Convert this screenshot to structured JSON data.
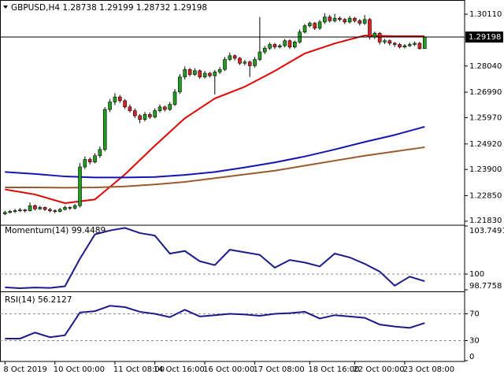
{
  "chart_data": [
    {
      "type": "candlestick",
      "title": "GBPUSD,H4  1.28738 1.29199 1.28732 1.29198",
      "xlim": [
        -1,
        92
      ],
      "ylim": [
        1.217,
        1.3068
      ],
      "yticks": [
        {
          "value": 1.3011,
          "label": "1.30110"
        },
        {
          "value": 1.2804,
          "label": "1.28040"
        },
        {
          "value": 1.2699,
          "label": "1.26990"
        },
        {
          "value": 1.2597,
          "label": "1.25970"
        },
        {
          "value": 1.2492,
          "label": "1.24920"
        },
        {
          "value": 1.239,
          "label": "1.23900"
        },
        {
          "value": 1.2285,
          "label": "1.22850"
        },
        {
          "value": 1.2183,
          "label": "1.21830"
        }
      ],
      "bid_line": 1.29198,
      "up_color": "#1f9e1f",
      "down_color": "#e02020",
      "wick_color": "#000000",
      "ohlc": [
        [
          1.2212,
          1.2225,
          1.2208,
          1.2218
        ],
        [
          1.2218,
          1.2228,
          1.2214,
          1.2222
        ],
        [
          1.2222,
          1.2232,
          1.2216,
          1.2225
        ],
        [
          1.2225,
          1.2236,
          1.222,
          1.2228
        ],
        [
          1.2228,
          1.2232,
          1.2218,
          1.2225
        ],
        [
          1.2225,
          1.2258,
          1.2222,
          1.2245
        ],
        [
          1.2245,
          1.225,
          1.2226,
          1.2232
        ],
        [
          1.2232,
          1.2244,
          1.2228,
          1.2238
        ],
        [
          1.2238,
          1.2242,
          1.2224,
          1.223
        ],
        [
          1.223,
          1.2236,
          1.2218,
          1.2225
        ],
        [
          1.2225,
          1.223,
          1.2215,
          1.2222
        ],
        [
          1.2222,
          1.2236,
          1.2218,
          1.223
        ],
        [
          1.223,
          1.2244,
          1.2226,
          1.2238
        ],
        [
          1.2238,
          1.2242,
          1.2228,
          1.2235
        ],
        [
          1.2235,
          1.2252,
          1.223,
          1.2245
        ],
        [
          1.2245,
          1.2415,
          1.2238,
          1.24
        ],
        [
          1.24,
          1.2442,
          1.2392,
          1.243
        ],
        [
          1.243,
          1.2438,
          1.241,
          1.242
        ],
        [
          1.242,
          1.2455,
          1.2414,
          1.2445
        ],
        [
          1.2445,
          1.2482,
          1.2436,
          1.247
        ],
        [
          1.247,
          1.264,
          1.2462,
          1.263
        ],
        [
          1.263,
          1.2672,
          1.262,
          1.266
        ],
        [
          1.266,
          1.2695,
          1.2648,
          1.268
        ],
        [
          1.268,
          1.2688,
          1.2656,
          1.2665
        ],
        [
          1.2665,
          1.2672,
          1.2632,
          1.264
        ],
        [
          1.264,
          1.265,
          1.2618,
          1.2625
        ],
        [
          1.2625,
          1.2634,
          1.2596,
          1.2605
        ],
        [
          1.2605,
          1.2612,
          1.2575,
          1.259
        ],
        [
          1.259,
          1.262,
          1.2582,
          1.261
        ],
        [
          1.261,
          1.2618,
          1.2592,
          1.26
        ],
        [
          1.26,
          1.2634,
          1.2594,
          1.2625
        ],
        [
          1.2625,
          1.265,
          1.2618,
          1.264
        ],
        [
          1.264,
          1.2646,
          1.2622,
          1.263
        ],
        [
          1.263,
          1.266,
          1.2624,
          1.265
        ],
        [
          1.265,
          1.2712,
          1.2644,
          1.27
        ],
        [
          1.27,
          1.2772,
          1.2692,
          1.276
        ],
        [
          1.276,
          1.2802,
          1.275,
          1.279
        ],
        [
          1.279,
          1.2796,
          1.2762,
          1.277
        ],
        [
          1.277,
          1.2795,
          1.2764,
          1.2785
        ],
        [
          1.2785,
          1.279,
          1.2752,
          1.276
        ],
        [
          1.276,
          1.2784,
          1.2754,
          1.2775
        ],
        [
          1.2775,
          1.278,
          1.2758,
          1.2765
        ],
        [
          1.2765,
          1.2788,
          1.269,
          1.278
        ],
        [
          1.278,
          1.28,
          1.2772,
          1.279
        ],
        [
          1.279,
          1.284,
          1.2784,
          1.283
        ],
        [
          1.283,
          1.2858,
          1.2824,
          1.2845
        ],
        [
          1.2845,
          1.285,
          1.2826,
          1.2835
        ],
        [
          1.2835,
          1.284,
          1.2808,
          1.2815
        ],
        [
          1.2815,
          1.2828,
          1.2806,
          1.282
        ],
        [
          1.282,
          1.2826,
          1.276,
          1.2805
        ],
        [
          1.2805,
          1.284,
          1.2798,
          1.283
        ],
        [
          1.283,
          1.3,
          1.2824,
          1.286
        ],
        [
          1.286,
          1.2884,
          1.2852,
          1.2875
        ],
        [
          1.2875,
          1.2898,
          1.2868,
          1.289
        ],
        [
          1.289,
          1.2896,
          1.2872,
          1.288
        ],
        [
          1.288,
          1.2892,
          1.2874,
          1.2885
        ],
        [
          1.2885,
          1.2912,
          1.2878,
          1.2905
        ],
        [
          1.2905,
          1.291,
          1.2872,
          1.288
        ],
        [
          1.288,
          1.2906,
          1.2874,
          1.29
        ],
        [
          1.29,
          1.295,
          1.2894,
          1.294
        ],
        [
          1.294,
          1.2972,
          1.2934,
          1.2965
        ],
        [
          1.2965,
          1.2982,
          1.2958,
          1.2975
        ],
        [
          1.2975,
          1.298,
          1.2948,
          1.2955
        ],
        [
          1.2955,
          1.2988,
          1.2948,
          1.298
        ],
        [
          1.298,
          1.3015,
          1.2972,
          1.3
        ],
        [
          1.3,
          1.3008,
          1.2978,
          1.2985
        ],
        [
          1.2985,
          1.3012,
          1.2978,
          1.2995
        ],
        [
          1.2995,
          1.3002,
          1.2982,
          1.299
        ],
        [
          1.299,
          1.2996,
          1.2972,
          1.298
        ],
        [
          1.298,
          1.3004,
          1.2974,
          1.2995
        ],
        [
          1.2995,
          1.3,
          1.2978,
          1.2985
        ],
        [
          1.2985,
          1.2992,
          1.2966,
          1.2975
        ],
        [
          1.2975,
          1.3008,
          1.2968,
          1.299
        ],
        [
          1.299,
          1.2996,
          1.291,
          1.292
        ],
        [
          1.292,
          1.2942,
          1.2912,
          1.2935
        ],
        [
          1.2935,
          1.294,
          1.289,
          1.29
        ],
        [
          1.29,
          1.2912,
          1.2892,
          1.2905
        ],
        [
          1.2905,
          1.291,
          1.2886,
          1.2895
        ],
        [
          1.2895,
          1.29,
          1.288,
          1.289
        ],
        [
          1.289,
          1.2896,
          1.2874,
          1.288
        ],
        [
          1.288,
          1.2892,
          1.2874,
          1.2885
        ],
        [
          1.2885,
          1.2898,
          1.288,
          1.289
        ],
        [
          1.289,
          1.2902,
          1.2884,
          1.2895
        ],
        [
          1.2895,
          1.29,
          1.287,
          1.28738
        ],
        [
          1.28738,
          1.29199,
          1.28732,
          1.29198
        ]
      ],
      "lines": [
        {
          "color": "#e00000",
          "x": [
            0,
            6,
            12,
            18,
            24,
            30,
            36,
            42,
            48,
            54,
            60,
            66,
            72,
            78,
            84
          ],
          "values": [
            1.231,
            1.229,
            1.2255,
            1.227,
            1.237,
            1.2485,
            1.2595,
            1.2674,
            1.2721,
            1.2784,
            1.2854,
            1.2894,
            1.2926,
            1.2923,
            1.2923
          ]
        },
        {
          "color": "#1414b4",
          "x": [
            0,
            6,
            12,
            18,
            24,
            30,
            36,
            42,
            48,
            54,
            60,
            66,
            72,
            78,
            84
          ],
          "values": [
            1.238,
            1.2372,
            1.2362,
            1.2358,
            1.2358,
            1.236,
            1.2368,
            1.238,
            1.2398,
            1.2418,
            1.2442,
            1.247,
            1.25,
            1.2528,
            1.2561
          ]
        },
        {
          "color": "#9a5a2e",
          "x": [
            0,
            6,
            12,
            18,
            24,
            30,
            36,
            42,
            48,
            54,
            60,
            66,
            72,
            78,
            84
          ],
          "values": [
            1.2318,
            1.2318,
            1.2317,
            1.2318,
            1.2322,
            1.233,
            1.234,
            1.2355,
            1.237,
            1.2385,
            1.2405,
            1.2425,
            1.2445,
            1.2462,
            1.2479
          ]
        }
      ]
    },
    {
      "type": "line",
      "title": "Momentum(14) 99.4489",
      "xlim": [
        -1,
        92
      ],
      "ylim": [
        98.7758,
        103.7491
      ],
      "yticks": [
        103.7491,
        100,
        98.7758
      ],
      "levels": [
        100
      ],
      "color": "#1a1a8c",
      "x": [
        0,
        3,
        6,
        9,
        12,
        15,
        18,
        21,
        24,
        27,
        30,
        33,
        36,
        39,
        42,
        45,
        48,
        51,
        54,
        57,
        60,
        63,
        66,
        69,
        72,
        75,
        78,
        81,
        84
      ],
      "values": [
        98.97,
        98.9,
        98.95,
        98.92,
        99.05,
        101.2,
        103.1,
        103.4,
        103.6,
        103.2,
        103.0,
        101.6,
        101.8,
        101.0,
        100.7,
        101.9,
        101.7,
        101.5,
        100.5,
        101.1,
        100.9,
        100.6,
        101.6,
        101.3,
        100.8,
        100.2,
        99.1,
        99.8,
        99.4489
      ]
    },
    {
      "type": "line",
      "title": "RSI(14) 56.2127",
      "xlim": [
        -1,
        92
      ],
      "ylim": [
        0,
        100
      ],
      "yticks": [
        70,
        30,
        0
      ],
      "levels": [
        70,
        30
      ],
      "color": "#1a1a8c",
      "x": [
        0,
        3,
        6,
        9,
        12,
        15,
        18,
        21,
        24,
        27,
        30,
        33,
        36,
        39,
        42,
        45,
        48,
        51,
        54,
        57,
        60,
        63,
        66,
        69,
        72,
        75,
        78,
        81,
        84
      ],
      "values": [
        33,
        33,
        42,
        35,
        38,
        72,
        74,
        82,
        80,
        73,
        70,
        65,
        76,
        66,
        68,
        70,
        69,
        67,
        70,
        71,
        73,
        63,
        68,
        66,
        64,
        54,
        51,
        49,
        56.2127
      ],
      "xticks": [
        {
          "value": 0,
          "label": "8 Oct 2019"
        },
        {
          "value": 10,
          "label": "10 Oct 00:00"
        },
        {
          "value": 22,
          "label": "11 Oct 08:00"
        },
        {
          "value": 30,
          "label": "14 Oct 16:00"
        },
        {
          "value": 40,
          "label": "16 Oct 00:00"
        },
        {
          "value": 50,
          "label": "17 Oct 08:00"
        },
        {
          "value": 61,
          "label": "18 Oct 16:00"
        },
        {
          "value": 70,
          "label": "22 Oct 00:00"
        },
        {
          "value": 80,
          "label": "23 Oct 08:00"
        }
      ]
    }
  ]
}
